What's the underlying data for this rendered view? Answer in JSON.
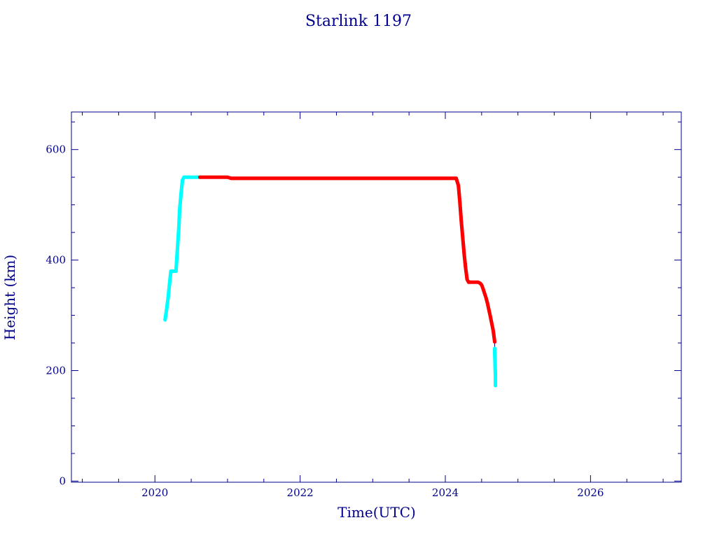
{
  "chart_data": {
    "type": "scatter",
    "title": "Starlink 1197",
    "xlabel": "Time(UTC)",
    "ylabel": "Height (km)",
    "xlim": [
      2018.85,
      2027.25
    ],
    "ylim": [
      -2,
      668
    ],
    "x_ticks": [
      2020,
      2022,
      2024,
      2026
    ],
    "x_tick_labels": [
      "2020",
      "2022",
      "2024",
      "2026"
    ],
    "y_ticks": [
      0,
      200,
      400,
      600
    ],
    "y_tick_labels": [
      "0",
      "200",
      "400",
      "600"
    ],
    "grid": false,
    "legend": "none",
    "colors": {
      "axis": "#00008b",
      "raising": "#00ffff",
      "operational": "#ff0000",
      "line": "#00008b"
    },
    "series": [
      {
        "color": "#00ffff",
        "x": [
          2020.14,
          2020.16,
          2020.18,
          2020.2,
          2020.22,
          2020.25,
          2020.27,
          2020.29,
          2020.31,
          2020.33,
          2020.34,
          2020.36,
          2020.38,
          2020.4,
          2020.45,
          2020.5,
          2020.55,
          2020.6,
          2020.62
        ],
        "y": [
          292,
          310,
          330,
          355,
          380,
          380,
          380,
          380,
          420,
          460,
          490,
          520,
          545,
          550,
          550,
          550,
          550,
          550,
          550
        ]
      },
      {
        "color": "#ff0000",
        "x": [
          2020.62,
          2020.8,
          2021.0,
          2021.05,
          2021.5,
          2022.0,
          2022.5,
          2023.0,
          2023.5,
          2024.0,
          2024.1,
          2024.15,
          2024.18,
          2024.2,
          2024.22,
          2024.24,
          2024.26,
          2024.28,
          2024.3,
          2024.32,
          2024.35,
          2024.4,
          2024.45,
          2024.48,
          2024.5,
          2024.52,
          2024.54,
          2024.56,
          2024.58,
          2024.6,
          2024.62,
          2024.64,
          2024.66,
          2024.67,
          2024.68
        ],
        "y": [
          550,
          550,
          550,
          548,
          548,
          548,
          548,
          548,
          548,
          548,
          548,
          548,
          535,
          505,
          470,
          440,
          410,
          385,
          365,
          360,
          360,
          360,
          360,
          358,
          355,
          348,
          340,
          332,
          322,
          310,
          298,
          285,
          272,
          262,
          252
        ]
      },
      {
        "color": "#00ffff",
        "x": [
          2024.68,
          2024.68,
          2024.69,
          2024.69
        ],
        "y": [
          240,
          235,
          190,
          173
        ]
      }
    ]
  }
}
